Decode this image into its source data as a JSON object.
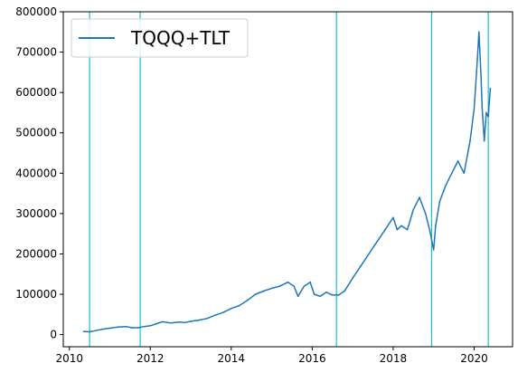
{
  "chart_data": {
    "type": "line",
    "title": "",
    "xlabel": "",
    "ylabel": "",
    "xlim": [
      2009.85,
      2020.95
    ],
    "ylim": [
      -30000,
      800000
    ],
    "x_ticks": [
      {
        "value": 2010,
        "label": "2010"
      },
      {
        "value": 2012,
        "label": "2012"
      },
      {
        "value": 2014,
        "label": "2014"
      },
      {
        "value": 2016,
        "label": "2016"
      },
      {
        "value": 2018,
        "label": "2018"
      },
      {
        "value": 2020,
        "label": "2020"
      }
    ],
    "y_ticks": [
      {
        "value": 0,
        "label": "0"
      },
      {
        "value": 100000,
        "label": "100000"
      },
      {
        "value": 200000,
        "label": "200000"
      },
      {
        "value": 300000,
        "label": "300000"
      },
      {
        "value": 400000,
        "label": "400000"
      },
      {
        "value": 500000,
        "label": "500000"
      },
      {
        "value": 600000,
        "label": "600000"
      },
      {
        "value": 700000,
        "label": "700000"
      },
      {
        "value": 800000,
        "label": "800000"
      }
    ],
    "grid": false,
    "legend_position": "top-left",
    "series": [
      {
        "name": "TQQQ+TLT",
        "color": "#1f77b4",
        "x": [
          2010.35,
          2010.5,
          2010.65,
          2010.8,
          2011.0,
          2011.2,
          2011.4,
          2011.55,
          2011.7,
          2011.85,
          2012.0,
          2012.15,
          2012.3,
          2012.5,
          2012.7,
          2012.85,
          2013.0,
          2013.2,
          2013.4,
          2013.6,
          2013.8,
          2014.0,
          2014.2,
          2014.4,
          2014.6,
          2014.8,
          2015.0,
          2015.2,
          2015.4,
          2015.55,
          2015.65,
          2015.8,
          2015.95,
          2016.05,
          2016.2,
          2016.35,
          2016.5,
          2016.65,
          2016.8,
          2017.0,
          2017.2,
          2017.4,
          2017.6,
          2017.8,
          2018.0,
          2018.1,
          2018.2,
          2018.35,
          2018.5,
          2018.65,
          2018.8,
          2018.9,
          2019.0,
          2019.05,
          2019.15,
          2019.3,
          2019.45,
          2019.6,
          2019.75,
          2019.9,
          2020.0,
          2020.08,
          2020.12,
          2020.17,
          2020.2,
          2020.25,
          2020.3,
          2020.35,
          2020.4
        ],
        "y": [
          8000,
          7000,
          10000,
          13000,
          16000,
          19000,
          20000,
          17000,
          17000,
          20000,
          22000,
          27000,
          32000,
          29000,
          31000,
          30000,
          33000,
          36000,
          40000,
          48000,
          55000,
          65000,
          72000,
          85000,
          100000,
          108000,
          115000,
          120000,
          130000,
          120000,
          95000,
          120000,
          130000,
          100000,
          95000,
          105000,
          98000,
          98000,
          108000,
          140000,
          170000,
          200000,
          230000,
          260000,
          290000,
          260000,
          270000,
          260000,
          310000,
          340000,
          300000,
          260000,
          210000,
          270000,
          330000,
          370000,
          400000,
          430000,
          400000,
          480000,
          560000,
          680000,
          750000,
          640000,
          560000,
          480000,
          550000,
          540000,
          610000
        ]
      }
    ],
    "vertical_lines": {
      "color": "#17becf",
      "x": [
        2010.5,
        2011.75,
        2016.6,
        2018.95,
        2020.35
      ]
    }
  }
}
